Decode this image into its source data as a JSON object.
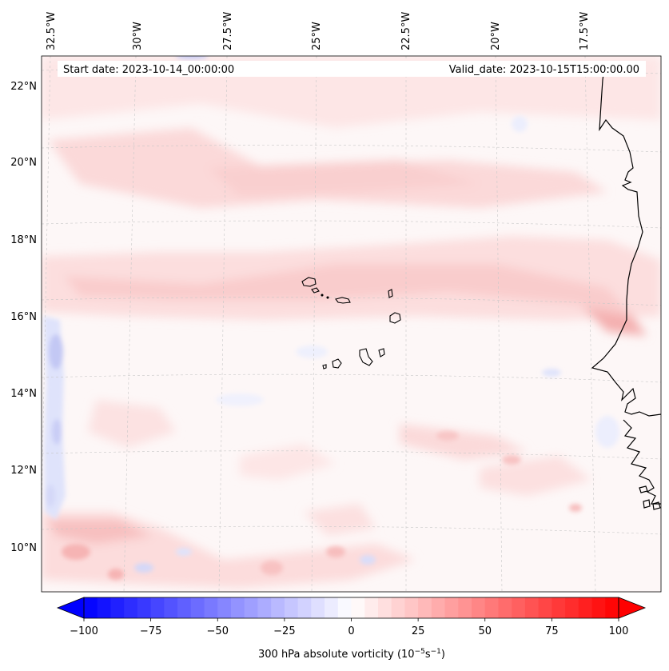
{
  "header": {
    "start_date": "Start date: 2023-10-14_00:00:00",
    "valid_date": "Valid_date: 2023-10-15T15:00:00.00"
  },
  "map": {
    "region": "Eastern Atlantic / Cape Verde / West Africa coast",
    "field_description": "300 hPa absolute vorticity shaded field, mostly weak positive (light red) with zonal bands, weak negative (blue) patches near 32.5W and south of 14N",
    "colors": {
      "background": "#fdf8f8",
      "weak_positive": "#fde4e4",
      "moderate_positive": "#f9c9c9",
      "stronger_positive": "#f4aaaa",
      "weak_negative": "#e6e8fc",
      "moderate_negative": "#c2c7f6",
      "coastline": "#000000",
      "gridline": "#bdbdbd"
    }
  },
  "axes": {
    "lon_ticks": [
      "32.5°W",
      "30°W",
      "27.5°W",
      "25°W",
      "22.5°W",
      "20°W",
      "17.5°W"
    ],
    "lat_ticks": [
      "22°N",
      "20°N",
      "18°N",
      "16°N",
      "14°N",
      "12°N",
      "10°N"
    ]
  },
  "chart_data": {
    "type": "heatmap",
    "title": "",
    "variable": "300 hPa absolute vorticity",
    "units": "10^-5 s^-1",
    "colorbar": {
      "label_prefix": "300 hPa absolute vorticity (10",
      "label_exp1": "−5",
      "label_mid": "s",
      "label_exp2": "−1",
      "label_suffix": ")",
      "min": -100,
      "max": 100,
      "step": 5,
      "extend": "both",
      "colormap": "bwr",
      "tick_values": [
        -100,
        -75,
        -50,
        -25,
        0,
        25,
        50,
        75,
        100
      ],
      "tick_labels": [
        "−100",
        "−75",
        "−50",
        "−25",
        "0",
        "25",
        "50",
        "75",
        "100"
      ]
    },
    "x_range_lon": [
      -32.6,
      -15.5
    ],
    "y_range_lat": [
      8.8,
      22.7
    ]
  }
}
